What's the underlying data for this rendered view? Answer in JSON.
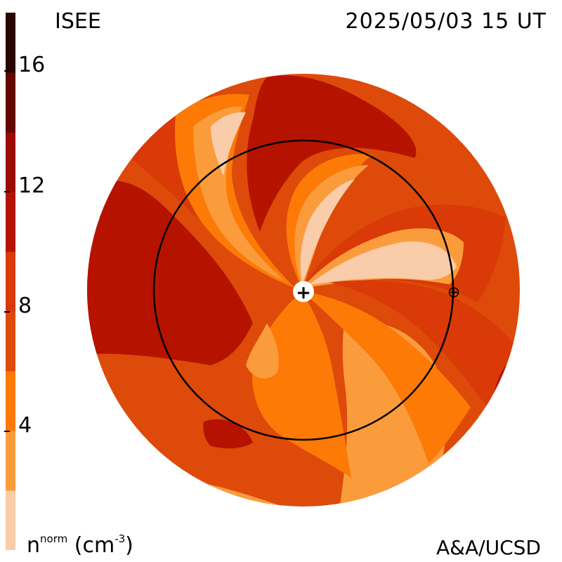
{
  "header": {
    "source": "ISEE",
    "timestamp": "2025/05/03 15 UT"
  },
  "footer": {
    "units_base": "n",
    "units_sup": "norm",
    "units_tail_open": " (cm",
    "units_exp": "-3",
    "units_tail_close": ")",
    "credit": "A&A/UCSD"
  },
  "colorbar": {
    "min": 0,
    "max": 18,
    "tick_labels": [
      "16",
      "12",
      "8",
      "4"
    ],
    "tick_values": [
      16,
      12,
      8,
      4
    ],
    "levels": [
      {
        "from": 0,
        "to": 2,
        "color": "#f9ccaa"
      },
      {
        "from": 2,
        "to": 4,
        "color": "#fb9c3c"
      },
      {
        "from": 4,
        "to": 6,
        "color": "#fd7a07"
      },
      {
        "from": 6,
        "to": 8,
        "color": "#de4a09"
      },
      {
        "from": 8,
        "to": 10,
        "color": "#d93a07"
      },
      {
        "from": 10,
        "to": 12,
        "color": "#b51300"
      },
      {
        "from": 12,
        "to": 14,
        "color": "#9a0a00"
      },
      {
        "from": 14,
        "to": 16,
        "color": "#620800"
      },
      {
        "from": 16,
        "to": 18,
        "color": "#2a0500"
      }
    ]
  },
  "markers": {
    "sun_symbol": "+",
    "earth_symbol": "⊕"
  }
}
